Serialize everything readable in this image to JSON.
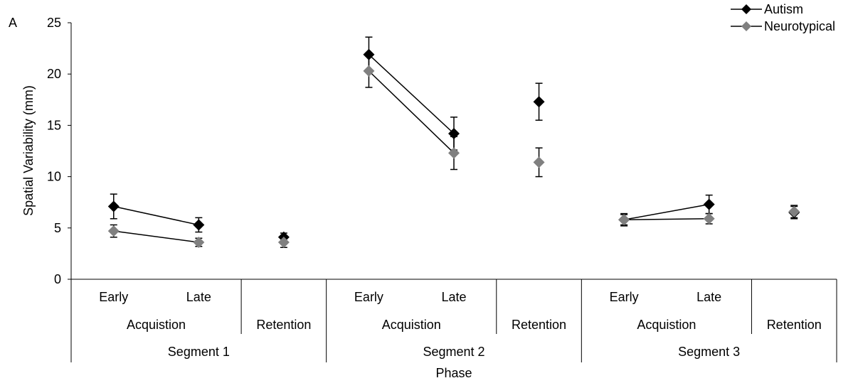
{
  "chart_data": {
    "type": "line",
    "panel_label": "A",
    "ylabel": "Spatial Variability (mm)",
    "xlabel": "Phase",
    "ylim": [
      0,
      25
    ],
    "yticks": [
      0,
      5,
      10,
      15,
      20,
      25
    ],
    "legend_position": "top-right",
    "points": [
      "Early",
      "Late",
      "Retention",
      "Early",
      "Late",
      "Retention",
      "Early",
      "Late",
      "Retention"
    ],
    "subgroups": [
      {
        "label": "Acquistion"
      },
      {
        "label": "Retention"
      },
      {
        "label": "Acquistion"
      },
      {
        "label": "Retention"
      },
      {
        "label": "Acquistion"
      },
      {
        "label": "Retention"
      }
    ],
    "segments": [
      {
        "label": "Segment 1"
      },
      {
        "label": "Segment 2"
      },
      {
        "label": "Segment 3"
      }
    ],
    "series": [
      {
        "name": "Autism",
        "color": "#000000",
        "values": [
          7.1,
          5.3,
          4.1,
          21.9,
          14.2,
          17.3,
          5.8,
          7.3,
          6.5
        ],
        "errors": [
          1.2,
          0.7,
          0.4,
          1.7,
          1.6,
          1.8,
          0.6,
          0.9,
          0.6
        ]
      },
      {
        "name": "Neurotypical",
        "color": "#808080",
        "values": [
          4.7,
          3.6,
          3.6,
          20.3,
          12.3,
          11.4,
          5.8,
          5.9,
          6.6
        ],
        "errors": [
          0.6,
          0.4,
          0.5,
          1.6,
          1.6,
          1.4,
          0.5,
          0.5,
          0.6
        ]
      }
    ],
    "connected_pairs": [
      [
        0,
        1
      ],
      [
        3,
        4
      ],
      [
        6,
        7
      ]
    ]
  }
}
